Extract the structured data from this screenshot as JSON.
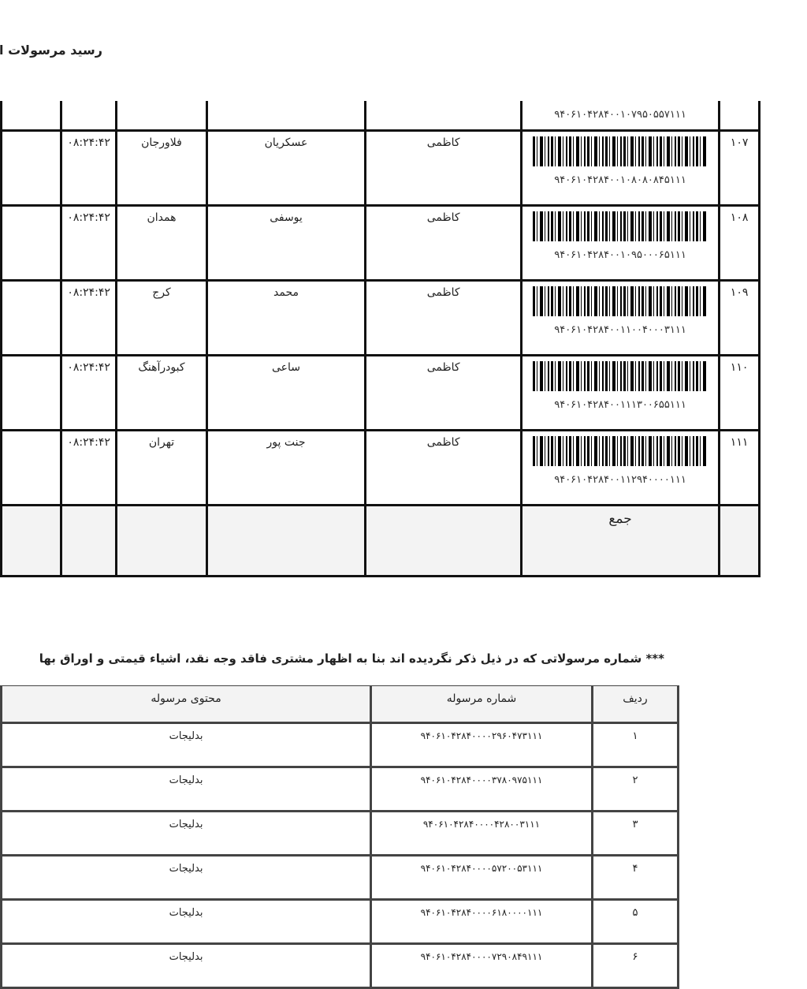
{
  "title": "رسید مرسولات اظ",
  "shipments": {
    "rows": [
      {
        "row": "",
        "tracking": "۹۴۰۶۱۰۴۲۸۴۰۰۱۰۷۹۵۰۵۵۷۱۱۱",
        "sender": "",
        "receiver": "",
        "city": "",
        "time": ""
      },
      {
        "row": "۱۰۷",
        "tracking": "۹۴۰۶۱۰۴۲۸۴۰۰۱۰۸۰۸۰۸۴۵۱۱۱",
        "sender": "کاظمی",
        "receiver": "عسکریان",
        "city": "فلاورجان",
        "time": "۰۸:۲۴:۴۲"
      },
      {
        "row": "۱۰۸",
        "tracking": "۹۴۰۶۱۰۴۲۸۴۰۰۱۰۹۵۰۰۰۶۵۱۱۱",
        "sender": "کاظمی",
        "receiver": "یوسفی",
        "city": "همدان",
        "time": "۰۸:۲۴:۴۲"
      },
      {
        "row": "۱۰۹",
        "tracking": "۹۴۰۶۱۰۴۲۸۴۰۰۱۱۰۰۴۰۰۰۳۱۱۱",
        "sender": "کاظمی",
        "receiver": "محمد",
        "city": "کرج",
        "time": "۰۸:۲۴:۴۲"
      },
      {
        "row": "۱۱۰",
        "tracking": "۹۴۰۶۱۰۴۲۸۴۰۰۱۱۱۳۰۰۶۵۵۱۱۱",
        "sender": "کاظمی",
        "receiver": "ساعی",
        "city": "کبودرآهنگ",
        "time": "۰۸:۲۴:۴۲"
      },
      {
        "row": "۱۱۱",
        "tracking": "۹۴۰۶۱۰۴۲۸۴۰۰۱۱۲۹۴۰۰۰۰۱۱۱",
        "sender": "کاظمی",
        "receiver": "جنت پور",
        "city": "تهران",
        "time": "۰۸:۲۴:۴۲"
      }
    ],
    "total_label": "جمع"
  },
  "note": "*** شماره مرسولاتی که در ذیل ذکر نگردیده اند بنا به اظهار مشتری فاقد وجه نقد، اشیاء قیمتی و اوراق بها",
  "contents_table": {
    "headers": {
      "row": "ردیف",
      "tracking": "شماره مرسوله",
      "content": "محتوی مرسوله"
    },
    "rows": [
      {
        "row": "۱",
        "tracking": "۹۴۰۶۱۰۴۲۸۴۰۰۰۰۲۹۶۰۴۷۳۱۱۱",
        "content": "بدلیجات"
      },
      {
        "row": "۲",
        "tracking": "۹۴۰۶۱۰۴۲۸۴۰۰۰۰۳۷۸۰۹۷۵۱۱۱",
        "content": "بدلیجات"
      },
      {
        "row": "۳",
        "tracking": "۹۴۰۶۱۰۴۲۸۴۰۰۰۰۴۲۸۰۰۳۱۱۱",
        "content": "بدلیجات"
      },
      {
        "row": "۴",
        "tracking": "۹۴۰۶۱۰۴۲۸۴۰۰۰۰۵۷۲۰۰۵۳۱۱۱",
        "content": "بدلیجات"
      },
      {
        "row": "۵",
        "tracking": "۹۴۰۶۱۰۴۲۸۴۰۰۰۰۶۱۸۰۰۰۰۱۱۱",
        "content": "بدلیجات"
      },
      {
        "row": "۶",
        "tracking": "۹۴۰۶۱۰۴۲۸۴۰۰۰۰۷۲۹۰۸۴۹۱۱۱",
        "content": "بدلیجات"
      }
    ]
  }
}
